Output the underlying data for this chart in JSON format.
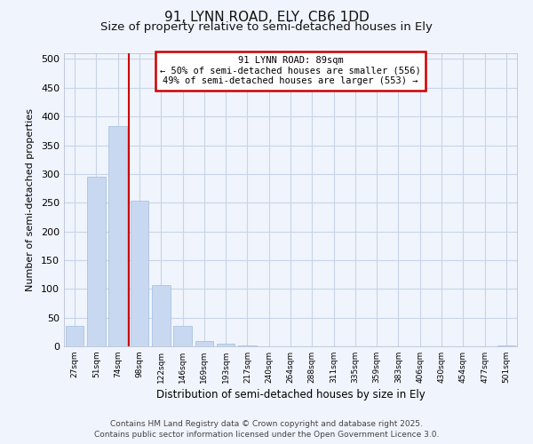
{
  "title": "91, LYNN ROAD, ELY, CB6 1DD",
  "subtitle": "Size of property relative to semi-detached houses in Ely",
  "xlabel": "Distribution of semi-detached houses by size in Ely",
  "ylabel": "Number of semi-detached properties",
  "categories": [
    "27sqm",
    "51sqm",
    "74sqm",
    "98sqm",
    "122sqm",
    "146sqm",
    "169sqm",
    "193sqm",
    "217sqm",
    "240sqm",
    "264sqm",
    "288sqm",
    "311sqm",
    "335sqm",
    "359sqm",
    "383sqm",
    "406sqm",
    "430sqm",
    "454sqm",
    "477sqm",
    "501sqm"
  ],
  "values": [
    35,
    295,
    383,
    253,
    107,
    35,
    10,
    5,
    2,
    0,
    0,
    0,
    0,
    0,
    0,
    0,
    0,
    0,
    0,
    0,
    2
  ],
  "bar_color": "#c8d8f0",
  "bar_edge_color": "#a0bce0",
  "vline_color": "#cc0000",
  "annotation_title": "91 LYNN ROAD: 89sqm",
  "annotation_line1": "← 50% of semi-detached houses are smaller (556)",
  "annotation_line2": "49% of semi-detached houses are larger (553) →",
  "annotation_box_color": "#cc0000",
  "ylim": [
    0,
    510
  ],
  "yticks": [
    0,
    50,
    100,
    150,
    200,
    250,
    300,
    350,
    400,
    450,
    500
  ],
  "background_color": "#f0f4fc",
  "plot_bg_color": "#f0f4fc",
  "grid_color": "#c8d4e8",
  "footer": "Contains HM Land Registry data © Crown copyright and database right 2025.\nContains public sector information licensed under the Open Government Licence 3.0.",
  "title_fontsize": 11,
  "subtitle_fontsize": 9.5,
  "footer_fontsize": 6.5,
  "vline_bar_index": 2
}
